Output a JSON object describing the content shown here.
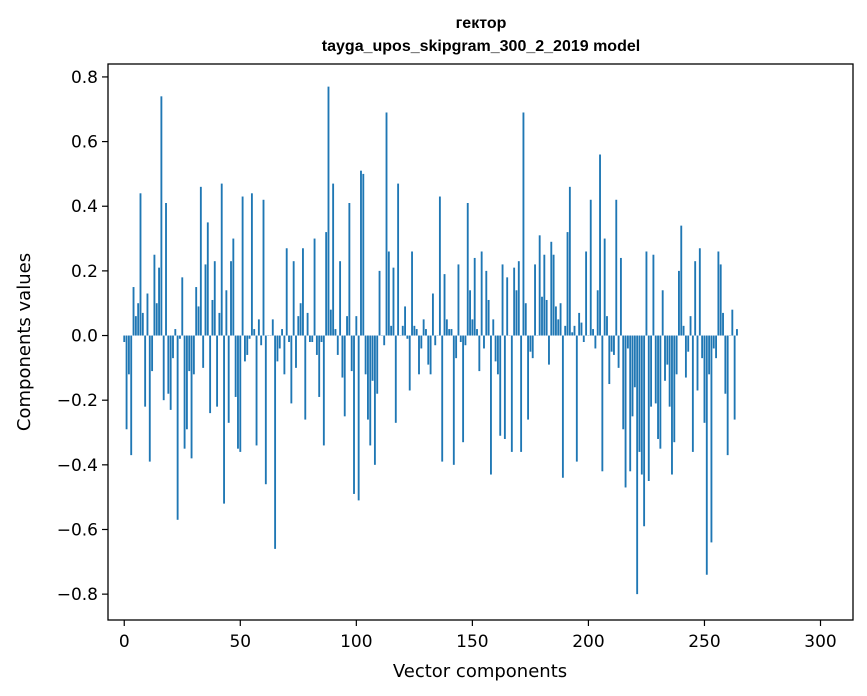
{
  "chart_data": {
    "type": "bar",
    "title_line1": "гектор",
    "title_line2": "tayga_upos_skipgram_300_2_2019 model",
    "xlabel": "Vector components",
    "ylabel": "Components values",
    "xlim": [
      -7,
      314
    ],
    "ylim": [
      -0.88,
      0.84
    ],
    "x_ticks": [
      0,
      50,
      100,
      150,
      200,
      250,
      300
    ],
    "x_tick_labels": [
      "0",
      "50",
      "100",
      "150",
      "200",
      "250",
      "300"
    ],
    "y_ticks": [
      0.8,
      0.6,
      0.4,
      0.2,
      0.0,
      -0.2,
      -0.4,
      -0.6,
      -0.8
    ],
    "y_tick_labels": [
      "0.8",
      "0.6",
      "0.4",
      "0.2",
      "0.0",
      "−0.2",
      "−0.4",
      "−0.6",
      "−0.8"
    ],
    "bar_color": "#1f77b4",
    "grid": false,
    "values": [
      -0.02,
      -0.29,
      -0.12,
      -0.37,
      0.15,
      0.06,
      0.1,
      0.44,
      0.07,
      -0.22,
      0.13,
      -0.39,
      -0.11,
      0.25,
      0.1,
      0.21,
      0.74,
      -0.2,
      0.41,
      -0.18,
      -0.23,
      -0.07,
      0.02,
      -0.57,
      -0.01,
      0.18,
      -0.35,
      -0.29,
      -0.11,
      -0.38,
      -0.12,
      0.15,
      0.09,
      0.46,
      -0.1,
      0.22,
      0.35,
      -0.24,
      0.11,
      0.23,
      -0.22,
      0.07,
      0.47,
      -0.52,
      0.14,
      -0.27,
      0.23,
      0.3,
      -0.19,
      -0.35,
      -0.36,
      0.43,
      -0.08,
      -0.06,
      -0.01,
      0.44,
      0.02,
      -0.34,
      0.05,
      -0.03,
      0.42,
      -0.46,
      0.0,
      0.0,
      0.05,
      -0.66,
      -0.08,
      -0.04,
      0.02,
      -0.12,
      0.27,
      -0.02,
      -0.21,
      0.23,
      -0.1,
      0.06,
      0.1,
      0.27,
      -0.26,
      0.07,
      -0.02,
      -0.02,
      0.3,
      -0.06,
      -0.19,
      -0.02,
      -0.34,
      0.32,
      0.77,
      0.08,
      0.47,
      0.02,
      -0.06,
      0.23,
      -0.13,
      -0.25,
      0.06,
      0.41,
      -0.11,
      -0.49,
      0.06,
      -0.51,
      0.51,
      0.5,
      -0.12,
      -0.26,
      -0.34,
      -0.14,
      -0.4,
      -0.18,
      0.2,
      0.0,
      -0.03,
      0.69,
      0.26,
      0.03,
      0.21,
      -0.27,
      0.47,
      0.0,
      0.03,
      0.09,
      -0.01,
      -0.17,
      0.26,
      0.03,
      0.02,
      -0.12,
      -0.04,
      0.05,
      0.02,
      -0.09,
      -0.12,
      0.13,
      -0.03,
      0.0,
      0.43,
      -0.39,
      0.19,
      0.05,
      0.02,
      0.02,
      -0.4,
      -0.07,
      0.22,
      -0.02,
      -0.33,
      -0.03,
      0.41,
      0.14,
      0.05,
      0.24,
      0.02,
      -0.11,
      0.26,
      -0.04,
      0.2,
      0.11,
      -0.43,
      0.05,
      -0.08,
      -0.12,
      -0.31,
      0.22,
      -0.32,
      0.18,
      0.0,
      -0.36,
      0.21,
      0.14,
      0.23,
      -0.36,
      0.69,
      0.1,
      -0.26,
      -0.05,
      -0.07,
      0.22,
      0.0,
      0.31,
      0.12,
      0.25,
      0.11,
      -0.09,
      0.29,
      0.25,
      0.09,
      0.05,
      0.1,
      -0.44,
      0.03,
      0.32,
      0.46,
      0.01,
      0.03,
      -0.39,
      0.07,
      0.04,
      -0.02,
      0.26,
      0.0,
      0.42,
      0.02,
      -0.04,
      0.14,
      0.56,
      -0.42,
      0.3,
      0.06,
      -0.15,
      -0.05,
      -0.06,
      0.42,
      -0.1,
      0.24,
      -0.29,
      -0.47,
      -0.04,
      -0.42,
      -0.25,
      -0.16,
      -0.8,
      -0.36,
      -0.43,
      -0.59,
      0.26,
      -0.45,
      -0.22,
      0.25,
      -0.21,
      -0.32,
      -0.35,
      0.14,
      -0.14,
      -0.09,
      -0.22,
      -0.43,
      -0.33,
      -0.12,
      0.2,
      0.34,
      0.03,
      -0.13,
      -0.05,
      0.06,
      -0.36,
      0.23,
      -0.17,
      0.27,
      -0.07,
      -0.27,
      -0.74,
      -0.12,
      -0.64,
      -0.04,
      -0.07,
      0.26,
      0.22,
      0.07,
      -0.18,
      -0.37,
      0.0,
      0.08,
      -0.26,
      0.02
    ]
  }
}
